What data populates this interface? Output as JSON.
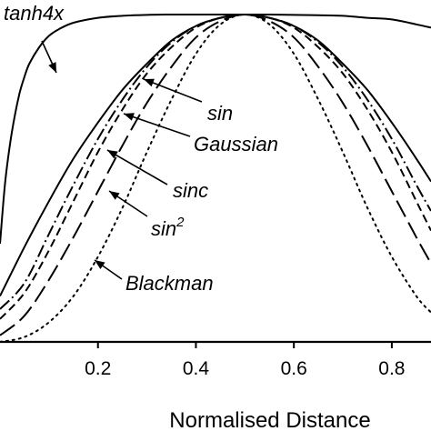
{
  "chart_data": {
    "type": "line",
    "title": "",
    "xlabel": "Normalised Distance",
    "ylabel": "",
    "xlim": [
      0.0,
      0.88
    ],
    "ylim": [
      0.0,
      1.0
    ],
    "xticks": [
      0.2,
      0.4,
      0.6,
      0.8
    ],
    "xtick_labels": [
      "0.2",
      "0.4",
      "0.6",
      "0.8"
    ],
    "grid": false,
    "series": [
      {
        "name": "tanh4x",
        "style": "solid",
        "x": [
          0.0,
          0.01,
          0.02,
          0.03,
          0.04,
          0.05,
          0.06,
          0.08,
          0.1,
          0.12,
          0.15,
          0.2,
          0.25,
          0.3,
          0.35,
          0.4,
          0.45,
          0.5,
          0.55,
          0.6,
          0.65,
          0.7,
          0.75,
          0.8,
          0.85,
          0.88
        ],
        "y": [
          0.3,
          0.48,
          0.6,
          0.69,
          0.76,
          0.81,
          0.85,
          0.9,
          0.935,
          0.955,
          0.975,
          0.99,
          0.996,
          0.999,
          1.0,
          1.0,
          1.0,
          1.0,
          1.0,
          0.999,
          0.998,
          0.996,
          0.99,
          0.985,
          0.97,
          0.96
        ]
      },
      {
        "name": "sin",
        "style": "solid",
        "x": [
          0.0,
          0.05,
          0.1,
          0.15,
          0.2,
          0.25,
          0.3,
          0.35,
          0.4,
          0.45,
          0.5,
          0.55,
          0.6,
          0.65,
          0.7,
          0.75,
          0.8,
          0.85,
          0.88
        ],
        "y": [
          0.14,
          0.29,
          0.43,
          0.56,
          0.67,
          0.77,
          0.85,
          0.92,
          0.965,
          0.99,
          1.0,
          0.99,
          0.965,
          0.92,
          0.85,
          0.77,
          0.67,
          0.56,
          0.49
        ]
      },
      {
        "name": "Gaussian",
        "style": "dash-dot",
        "x": [
          0.0,
          0.05,
          0.1,
          0.15,
          0.2,
          0.25,
          0.3,
          0.35,
          0.4,
          0.45,
          0.5,
          0.55,
          0.6,
          0.65,
          0.7,
          0.75,
          0.8,
          0.85,
          0.88
        ],
        "y": [
          0.1,
          0.18,
          0.33,
          0.48,
          0.62,
          0.74,
          0.84,
          0.915,
          0.965,
          0.99,
          1.0,
          0.99,
          0.965,
          0.915,
          0.84,
          0.74,
          0.62,
          0.48,
          0.4
        ]
      },
      {
        "name": "sinc",
        "style": "dashed",
        "x": [
          0.0,
          0.05,
          0.1,
          0.15,
          0.2,
          0.25,
          0.3,
          0.35,
          0.4,
          0.45,
          0.5,
          0.55,
          0.6,
          0.65,
          0.7,
          0.75,
          0.8,
          0.85,
          0.88
        ],
        "y": [
          0.07,
          0.15,
          0.28,
          0.43,
          0.58,
          0.71,
          0.82,
          0.9,
          0.96,
          0.99,
          1.0,
          0.99,
          0.96,
          0.9,
          0.82,
          0.71,
          0.58,
          0.43,
          0.34
        ]
      },
      {
        "name": "sin2",
        "style": "long-dash",
        "x": [
          0.0,
          0.05,
          0.1,
          0.15,
          0.2,
          0.25,
          0.3,
          0.35,
          0.4,
          0.45,
          0.5,
          0.55,
          0.6,
          0.65,
          0.7,
          0.75,
          0.8,
          0.85,
          0.88
        ],
        "y": [
          0.02,
          0.08,
          0.19,
          0.32,
          0.46,
          0.6,
          0.73,
          0.84,
          0.93,
          0.98,
          1.0,
          0.98,
          0.93,
          0.84,
          0.73,
          0.6,
          0.46,
          0.32,
          0.24
        ]
      },
      {
        "name": "Blackman",
        "style": "dotted",
        "x": [
          0.0,
          0.05,
          0.1,
          0.15,
          0.2,
          0.25,
          0.3,
          0.35,
          0.4,
          0.45,
          0.5,
          0.55,
          0.6,
          0.65,
          0.7,
          0.75,
          0.8,
          0.85,
          0.88
        ],
        "y": [
          0.0,
          0.015,
          0.06,
          0.14,
          0.26,
          0.41,
          0.58,
          0.74,
          0.88,
          0.97,
          1.0,
          0.97,
          0.88,
          0.74,
          0.58,
          0.41,
          0.26,
          0.14,
          0.09
        ]
      }
    ],
    "annotations": [
      {
        "text": "tanh4x",
        "sup": ""
      },
      {
        "text": "sin",
        "sup": ""
      },
      {
        "text": "Gaussian",
        "sup": ""
      },
      {
        "text": "sinc",
        "sup": ""
      },
      {
        "text": "sin",
        "sup": "2"
      },
      {
        "text": "Blackman",
        "sup": ""
      }
    ]
  }
}
